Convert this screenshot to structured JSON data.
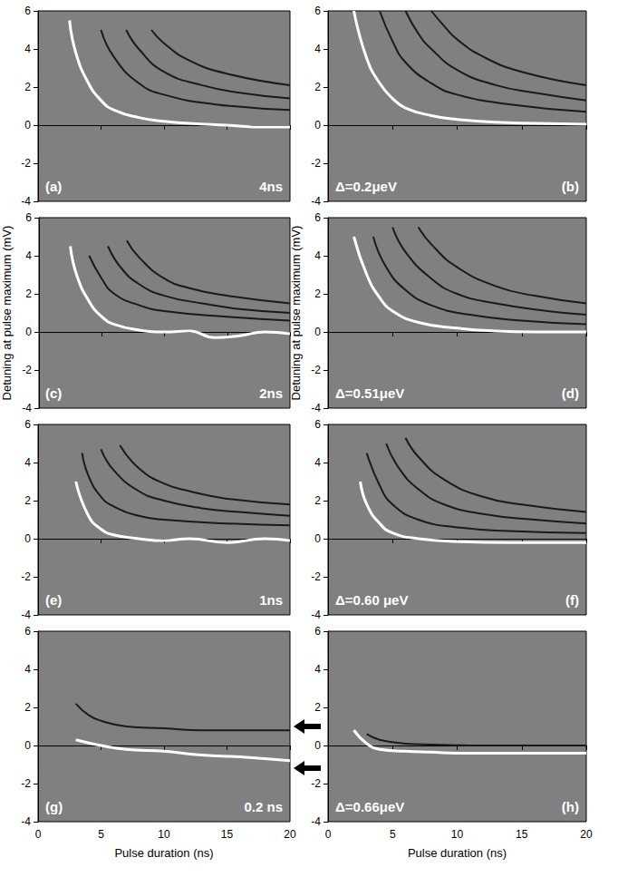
{
  "chart_data": [
    {
      "type": "line",
      "title": "(a)",
      "subtitle": "4ns",
      "xlim": [
        0,
        20
      ],
      "xticks": [
        0,
        5,
        10,
        15,
        20
      ],
      "ylim": [
        -4,
        6
      ],
      "yticks": [
        -4,
        -2,
        0,
        2,
        4,
        6
      ],
      "tick_labels": "y",
      "series": [
        {
          "color": "#ffffff",
          "line_style": "solid",
          "x": [
            2.5,
            3,
            4,
            5,
            6,
            8,
            10,
            12,
            15,
            18,
            20
          ],
          "values": [
            5.5,
            3.8,
            2.2,
            1.3,
            0.8,
            0.4,
            0.2,
            0.1,
            0,
            -0.1,
            -0.1
          ]
        },
        {
          "color": "#1a1a1a",
          "line_style": "solid",
          "x": [
            5,
            6,
            8,
            10,
            14,
            20
          ],
          "values": [
            5,
            3.6,
            2.2,
            1.6,
            1.1,
            0.8
          ]
        },
        {
          "color": "#1a1a1a",
          "line_style": "solid",
          "x": [
            7,
            8,
            10,
            13,
            16,
            20
          ],
          "values": [
            5,
            4,
            2.8,
            2.1,
            1.7,
            1.4
          ]
        },
        {
          "color": "#1a1a1a",
          "line_style": "solid",
          "x": [
            9,
            10,
            12,
            15,
            20
          ],
          "values": [
            5,
            4.3,
            3.4,
            2.7,
            2.1
          ]
        }
      ]
    },
    {
      "type": "line",
      "title": "(b)",
      "subtitle": "Δ=0.2μeV",
      "xlim": [
        0,
        20
      ],
      "xticks": [
        0,
        5,
        10,
        15,
        20
      ],
      "ylim": [
        -4,
        6
      ],
      "yticks": [
        -4,
        -2,
        0,
        2,
        4,
        6
      ],
      "tick_labels": "y",
      "series": [
        {
          "color": "#ffffff",
          "line_style": "solid",
          "x": [
            2,
            3,
            4,
            5,
            6,
            8,
            10,
            13,
            16,
            20
          ],
          "values": [
            6,
            3.5,
            2.2,
            1.4,
            0.9,
            0.5,
            0.3,
            0.15,
            0.1,
            0.05
          ]
        },
        {
          "color": "#1a1a1a",
          "line_style": "solid",
          "x": [
            4,
            5,
            6,
            8,
            10,
            14,
            20
          ],
          "values": [
            6,
            4.4,
            3.3,
            2.2,
            1.6,
            1.1,
            0.7
          ]
        },
        {
          "color": "#1a1a1a",
          "line_style": "solid",
          "x": [
            6,
            7,
            8,
            10,
            13,
            16,
            20
          ],
          "values": [
            6,
            4.8,
            4,
            2.9,
            2.1,
            1.7,
            1.3
          ]
        },
        {
          "color": "#1a1a1a",
          "line_style": "solid",
          "x": [
            8,
            9,
            10,
            12,
            15,
            20
          ],
          "values": [
            6,
            5.2,
            4.5,
            3.6,
            2.8,
            2.1
          ]
        }
      ]
    },
    {
      "type": "line",
      "title": "(c)",
      "subtitle": "2ns",
      "ylabel": "Detuning at pulse maximum (mV)",
      "xlim": [
        0,
        20
      ],
      "xticks": [
        0,
        5,
        10,
        15,
        20
      ],
      "ylim": [
        -4,
        6
      ],
      "yticks": [
        -4,
        -2,
        0,
        2,
        4,
        6
      ],
      "tick_labels": "y",
      "series": [
        {
          "color": "#ffffff",
          "line_style": "solid",
          "x": [
            2.5,
            3,
            4,
            5,
            6,
            8,
            10,
            12,
            14,
            16,
            18,
            20
          ],
          "values": [
            4.5,
            3,
            1.6,
            0.8,
            0.4,
            0.1,
            0,
            0.05,
            -0.3,
            -0.2,
            0,
            -0.1
          ]
        },
        {
          "color": "#1a1a1a",
          "line_style": "solid",
          "x": [
            4,
            5,
            6,
            8,
            10,
            15,
            20
          ],
          "values": [
            4,
            2.8,
            2,
            1.4,
            1.1,
            0.8,
            0.6
          ]
        },
        {
          "color": "#1a1a1a",
          "line_style": "solid",
          "x": [
            5.5,
            6.5,
            8,
            10,
            13,
            16,
            20
          ],
          "values": [
            4.5,
            3.4,
            2.5,
            1.9,
            1.5,
            1.2,
            1
          ]
        },
        {
          "color": "#1a1a1a",
          "line_style": "solid",
          "x": [
            7,
            8,
            10,
            12,
            15,
            20
          ],
          "values": [
            4.8,
            3.9,
            2.8,
            2.3,
            1.9,
            1.5
          ]
        }
      ]
    },
    {
      "type": "line",
      "title": "(d)",
      "subtitle": "Δ=0.51μeV",
      "ylabel": "Detuning at pulse maximum (mV)",
      "xlim": [
        0,
        20
      ],
      "xticks": [
        0,
        5,
        10,
        15,
        20
      ],
      "ylim": [
        -4,
        6
      ],
      "yticks": [
        -4,
        -2,
        0,
        2,
        4,
        6
      ],
      "tick_labels": "y",
      "series": [
        {
          "color": "#ffffff",
          "line_style": "solid",
          "x": [
            2,
            3,
            4,
            5,
            7,
            10,
            13,
            16,
            20
          ],
          "values": [
            5,
            3,
            1.8,
            1.1,
            0.5,
            0.2,
            0.05,
            0,
            0
          ]
        },
        {
          "color": "#1a1a1a",
          "line_style": "solid",
          "x": [
            3.5,
            4.5,
            6,
            8,
            11,
            15,
            20
          ],
          "values": [
            5,
            3.4,
            2.2,
            1.4,
            0.9,
            0.6,
            0.4
          ]
        },
        {
          "color": "#1a1a1a",
          "line_style": "solid",
          "x": [
            5,
            6,
            8,
            10,
            13,
            17,
            20
          ],
          "values": [
            5.5,
            4.2,
            2.8,
            2,
            1.5,
            1.1,
            0.9
          ]
        },
        {
          "color": "#1a1a1a",
          "line_style": "solid",
          "x": [
            7,
            8,
            10,
            13,
            16,
            20
          ],
          "values": [
            5.5,
            4.6,
            3.4,
            2.4,
            1.9,
            1.5
          ]
        }
      ]
    },
    {
      "type": "line",
      "title": "(e)",
      "subtitle": "1ns",
      "xlim": [
        0,
        20
      ],
      "xticks": [
        0,
        5,
        10,
        15,
        20
      ],
      "ylim": [
        -4,
        6
      ],
      "yticks": [
        -4,
        -2,
        0,
        2,
        4,
        6
      ],
      "tick_labels": "y",
      "series": [
        {
          "color": "#ffffff",
          "line_style": "solid",
          "x": [
            3,
            4,
            5,
            6,
            8,
            10,
            12,
            15,
            18,
            20
          ],
          "values": [
            3,
            1.2,
            0.5,
            0.2,
            0,
            -0.1,
            0,
            -0.2,
            0,
            -0.1
          ]
        },
        {
          "color": "#1a1a1a",
          "line_style": "solid",
          "x": [
            3.5,
            4,
            5,
            6,
            8,
            10,
            15,
            20
          ],
          "values": [
            4.5,
            3.3,
            2.2,
            1.7,
            1.2,
            1,
            0.8,
            0.7
          ]
        },
        {
          "color": "#1a1a1a",
          "line_style": "solid",
          "x": [
            5,
            6,
            8,
            10,
            13,
            16,
            20
          ],
          "values": [
            4.7,
            3.6,
            2.5,
            2,
            1.6,
            1.4,
            1.2
          ]
        },
        {
          "color": "#1a1a1a",
          "line_style": "solid",
          "x": [
            6.5,
            8,
            10,
            12,
            15,
            20
          ],
          "values": [
            4.9,
            3.7,
            2.9,
            2.5,
            2.1,
            1.8
          ]
        }
      ]
    },
    {
      "type": "line",
      "title": "(f)",
      "subtitle": "Δ=0.60 μeV",
      "xlim": [
        0,
        20
      ],
      "xticks": [
        0,
        5,
        10,
        15,
        20
      ],
      "ylim": [
        -4,
        6
      ],
      "yticks": [
        -4,
        -2,
        0,
        2,
        4,
        6
      ],
      "tick_labels": "y",
      "series": [
        {
          "color": "#ffffff",
          "line_style": "solid",
          "x": [
            2.5,
            3,
            4,
            5,
            7,
            10,
            14,
            20
          ],
          "values": [
            3,
            1.8,
            0.8,
            0.3,
            0,
            -0.15,
            -0.2,
            -0.2
          ]
        },
        {
          "color": "#1a1a1a",
          "line_style": "solid",
          "x": [
            3,
            4,
            5,
            7,
            10,
            14,
            20
          ],
          "values": [
            4.5,
            2.8,
            1.8,
            1,
            0.6,
            0.4,
            0.3
          ]
        },
        {
          "color": "#1a1a1a",
          "line_style": "solid",
          "x": [
            4.5,
            5.5,
            7,
            9,
            12,
            16,
            20
          ],
          "values": [
            5,
            3.7,
            2.6,
            1.8,
            1.3,
            1,
            0.8
          ]
        },
        {
          "color": "#1a1a1a",
          "line_style": "solid",
          "x": [
            6,
            7,
            9,
            12,
            15,
            20
          ],
          "values": [
            5.3,
            4.3,
            3.1,
            2.2,
            1.8,
            1.4
          ]
        }
      ]
    },
    {
      "type": "line",
      "title": "(g)",
      "subtitle": "0.2 ns",
      "xlabel": "Pulse duration (ns)",
      "xlim": [
        0,
        20
      ],
      "xticks": [
        0,
        5,
        10,
        15,
        20
      ],
      "ylim": [
        -4,
        6
      ],
      "yticks": [
        -4,
        -2,
        0,
        2,
        4,
        6
      ],
      "series": [
        {
          "color": "#1a1a1a",
          "line_style": "solid",
          "x": [
            3,
            4,
            5,
            7,
            10,
            13,
            16,
            20
          ],
          "values": [
            2.2,
            1.6,
            1.3,
            1,
            0.9,
            0.8,
            0.8,
            0.8
          ]
        },
        {
          "color": "#ffffff",
          "line_style": "solid",
          "x": [
            3,
            5,
            7,
            10,
            13,
            16,
            20
          ],
          "values": [
            0.3,
            0,
            -0.2,
            -0.3,
            -0.5,
            -0.6,
            -0.8
          ]
        }
      ]
    },
    {
      "type": "line",
      "title": "(h)",
      "subtitle": "Δ=0.66μeV",
      "xlabel": "Pulse duration (ns)",
      "xlim": [
        0,
        20
      ],
      "xticks": [
        0,
        5,
        10,
        15,
        20
      ],
      "ylim": [
        -4,
        6
      ],
      "yticks": [
        -4,
        -2,
        0,
        2,
        4,
        6
      ],
      "series": [
        {
          "color": "#ffffff",
          "line_style": "solid",
          "x": [
            2,
            3,
            4,
            6,
            8,
            10,
            14,
            20
          ],
          "values": [
            0.8,
            0.1,
            -0.2,
            -0.3,
            -0.35,
            -0.4,
            -0.4,
            -0.4
          ]
        },
        {
          "color": "#1a1a1a",
          "line_style": "solid",
          "x": [
            3,
            4,
            6,
            8,
            12,
            20
          ],
          "values": [
            0.6,
            0.3,
            0.1,
            0.05,
            0,
            0
          ]
        }
      ]
    }
  ]
}
